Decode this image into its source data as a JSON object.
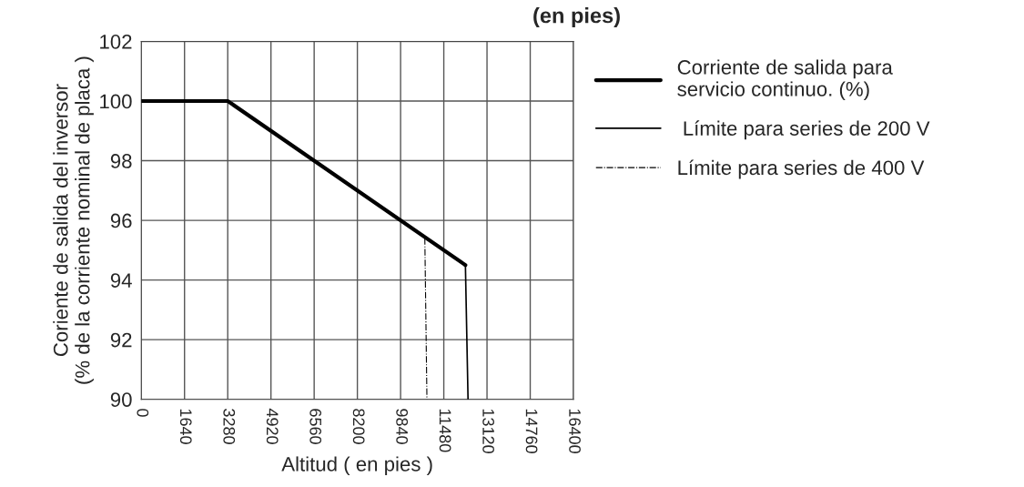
{
  "chart_data": {
    "type": "line",
    "title": "(en pies)",
    "xlabel": "Altitud ( en pies )",
    "ylabel": "Coriente de salida del inversor\n(% de la corriente nominal de placa )",
    "series": [
      {
        "name": "Corriente de salida para\nservicio continuo. (%)",
        "color": "#000000",
        "x": [
          0,
          3280,
          12300
        ],
        "values": [
          100,
          100,
          94.5
        ],
        "line_style": "solid"
      },
      {
        "name": " Límite para series de 200 V",
        "color": "#000000",
        "x": [
          12300,
          12400
        ],
        "values": [
          94.5,
          90
        ],
        "line_style": "solid"
      },
      {
        "name": "Límite para series de 400 V",
        "color": "#000000",
        "x": [
          10760,
          10840
        ],
        "values": [
          95.4,
          90
        ],
        "line_style": "dashdot"
      }
    ],
    "xlim": [
      0,
      16400
    ],
    "xticks": [
      0,
      1640,
      3280,
      4920,
      6560,
      8200,
      9840,
      11480,
      13120,
      14760,
      16400
    ],
    "ylim": [
      90,
      102
    ],
    "yticks": [
      90,
      92,
      94,
      96,
      98,
      100,
      102
    ],
    "grid": true,
    "legend": "right",
    "marker": "none"
  }
}
